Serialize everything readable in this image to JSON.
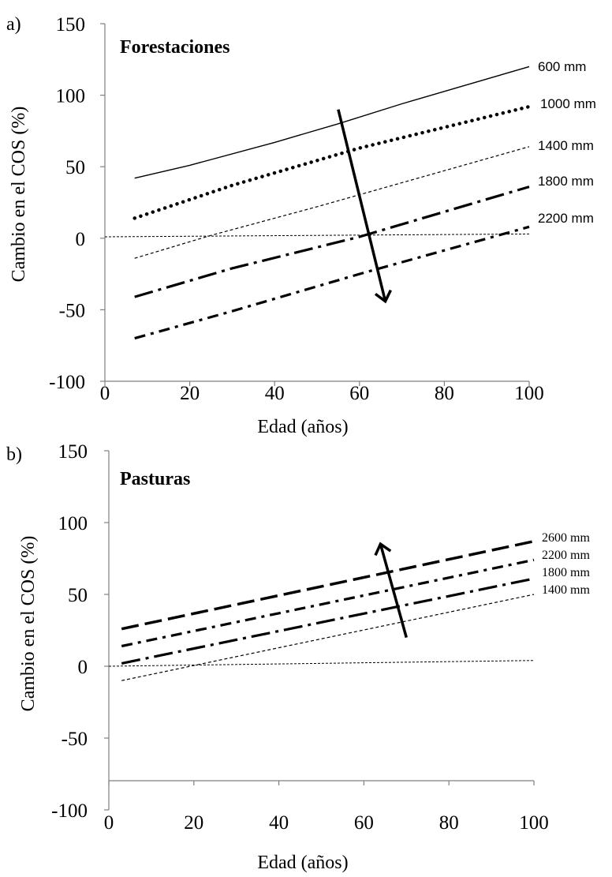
{
  "chart_data": [
    {
      "type": "line",
      "panel_label": "a)",
      "title": "Forestaciones",
      "xlabel": "Edad (años)",
      "ylabel": "Cambio en el COS (%)",
      "xlim": [
        0,
        100
      ],
      "ylim": [
        -100,
        150
      ],
      "xticks": [
        "0",
        "20",
        "40",
        "60",
        "80",
        "100"
      ],
      "yticks": [
        "150",
        "100",
        "50",
        "0",
        "-50",
        "-100"
      ],
      "grid": false,
      "arrow": {
        "from": [
          55,
          90
        ],
        "to": [
          66,
          -43
        ]
      },
      "series": [
        {
          "name": "600 mm",
          "style": "solid",
          "x": [
            7,
            20,
            40,
            55,
            70,
            85,
            100
          ],
          "y": [
            42,
            51,
            67,
            80,
            94,
            107,
            120
          ]
        },
        {
          "name": "1000 mm",
          "style": "dotted",
          "x": [
            7,
            30,
            60,
            100
          ],
          "y": [
            14,
            37,
            63,
            92
          ]
        },
        {
          "name": "1400 mm",
          "style": "short-dash",
          "x": [
            7,
            25,
            50,
            100
          ],
          "y": [
            -14,
            2,
            22,
            64
          ]
        },
        {
          "name": "1800 mm",
          "style": "long-dash-dot",
          "x": [
            7,
            30,
            60,
            100
          ],
          "y": [
            -41,
            -21,
            1,
            36
          ]
        },
        {
          "name": "2200 mm",
          "style": "dash-dot",
          "x": [
            7,
            30,
            60,
            100
          ],
          "y": [
            -70,
            -51,
            -25,
            8
          ]
        },
        {
          "name": "",
          "style": "thin-dash",
          "x": [
            0,
            100
          ],
          "y": [
            1,
            3
          ]
        }
      ]
    },
    {
      "type": "line",
      "panel_label": "b)",
      "title": "Pasturas",
      "xlabel": "Edad (años)",
      "ylabel": "Cambio  en el COS (%)",
      "xlim": [
        0,
        100
      ],
      "ylim": [
        -100,
        150
      ],
      "xticks": [
        "0",
        "20",
        "40",
        "60",
        "80",
        "100"
      ],
      "yticks": [
        "150",
        "100",
        "50",
        "0",
        "-50",
        "-100"
      ],
      "grid": false,
      "arrow": {
        "from": [
          70,
          20
        ],
        "to": [
          64,
          84
        ]
      },
      "series": [
        {
          "name": "2600 mm",
          "style": "long-dash",
          "x": [
            3,
            100
          ],
          "y": [
            26,
            87
          ]
        },
        {
          "name": "2200 mm",
          "style": "dash-dot",
          "x": [
            3,
            100
          ],
          "y": [
            14,
            74
          ]
        },
        {
          "name": "1800 mm",
          "style": "long-dash-dot",
          "x": [
            3,
            100
          ],
          "y": [
            2,
            61
          ]
        },
        {
          "name": "1400 mm",
          "style": "short-dash",
          "x": [
            3,
            100
          ],
          "y": [
            -10,
            50
          ]
        },
        {
          "name": "",
          "style": "thin-dash",
          "x": [
            0,
            100
          ],
          "y": [
            0,
            4
          ]
        }
      ]
    }
  ]
}
